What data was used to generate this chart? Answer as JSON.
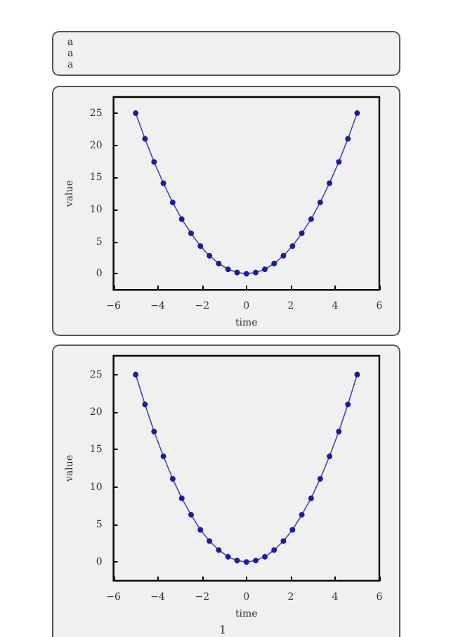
{
  "chart_data": [
    {
      "type": "other",
      "annotations": [
        "a",
        "a",
        "a"
      ]
    },
    {
      "type": "line",
      "xlabel": "time",
      "ylabel": "value",
      "color": "#1c1c9c",
      "marker": "circle",
      "line_style": "solid",
      "x": [
        -5,
        -4.58,
        -4.17,
        -3.75,
        -3.33,
        -2.92,
        -2.5,
        -2.08,
        -1.67,
        -1.25,
        -0.83,
        -0.42,
        0,
        0.42,
        0.83,
        1.25,
        1.67,
        2.08,
        2.5,
        2.92,
        3.33,
        3.75,
        4.17,
        4.58,
        5
      ],
      "values": [
        25,
        21.0,
        17.4,
        14.1,
        11.1,
        8.5,
        6.3,
        4.3,
        2.8,
        1.6,
        0.7,
        0.2,
        0,
        0.2,
        0.7,
        1.6,
        2.8,
        4.3,
        6.3,
        8.5,
        11.1,
        14.1,
        17.4,
        21.0,
        25
      ],
      "xlim": [
        -6,
        6
      ],
      "xticks": [
        -6,
        -4,
        -2,
        0,
        2,
        4,
        6
      ],
      "ylim": [
        -2.5,
        27.5
      ],
      "yticks": [
        0,
        5,
        10,
        15,
        20,
        25
      ]
    },
    {
      "type": "line",
      "xlabel": "time",
      "ylabel": "value",
      "color": "#1c1c9c",
      "marker": "circle",
      "line_style": "solid",
      "x": [
        -5,
        -4.58,
        -4.17,
        -3.75,
        -3.33,
        -2.92,
        -2.5,
        -2.08,
        -1.67,
        -1.25,
        -0.83,
        -0.42,
        0,
        0.42,
        0.83,
        1.25,
        1.67,
        2.08,
        2.5,
        2.92,
        3.33,
        3.75,
        4.17,
        4.58,
        5
      ],
      "values": [
        25,
        21.0,
        17.4,
        14.1,
        11.1,
        8.5,
        6.3,
        4.3,
        2.8,
        1.6,
        0.7,
        0.2,
        0,
        0.2,
        0.7,
        1.6,
        2.8,
        4.3,
        6.3,
        8.5,
        11.1,
        14.1,
        17.4,
        21.0,
        25
      ],
      "xlim": [
        -6,
        6
      ],
      "xticks": [
        -6,
        -4,
        -2,
        0,
        2,
        4,
        6
      ],
      "ylim": [
        -2.5,
        27.5
      ],
      "yticks": [
        0,
        5,
        10,
        15,
        20,
        25
      ],
      "annotations": [
        "1"
      ]
    }
  ]
}
